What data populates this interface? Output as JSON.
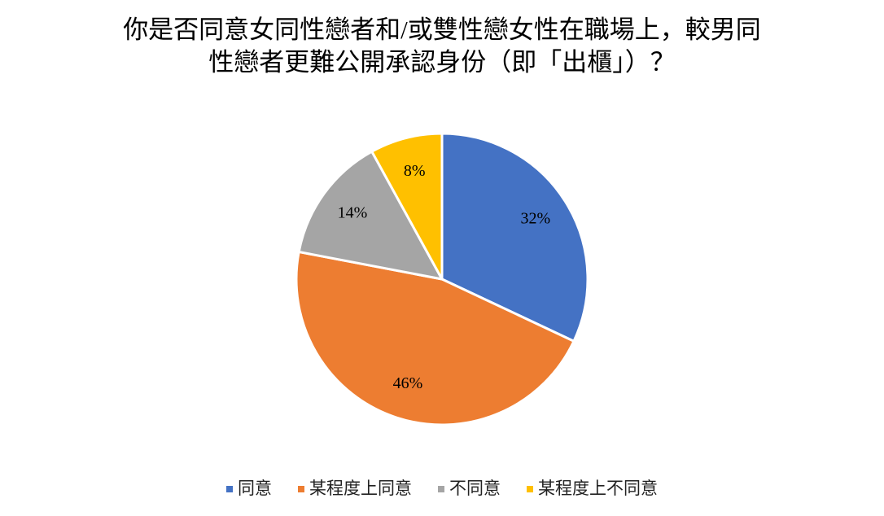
{
  "chart_data": {
    "type": "pie",
    "title": [
      "你是否同意女同性戀者和/或雙性戀女性在職場上，較男同",
      "性戀者更難公開承認身份（即「出櫃」）？"
    ],
    "categories": [
      "同意",
      "某程度上同意",
      "不同意",
      "某程度上不同意"
    ],
    "values": [
      32,
      46,
      14,
      8
    ],
    "value_labels": [
      "32%",
      "46%",
      "14%",
      "8%"
    ],
    "colors": [
      "#4472c4",
      "#ed7d31",
      "#a5a5a5",
      "#ffc000"
    ],
    "legend": "bottom"
  }
}
